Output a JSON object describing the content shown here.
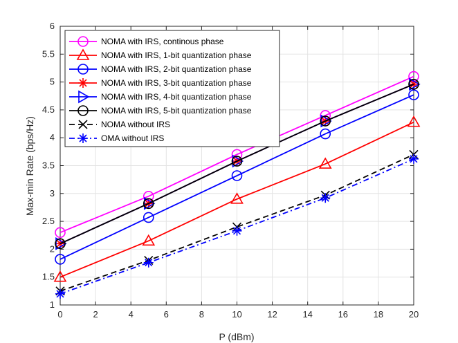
{
  "chart_data": {
    "type": "line",
    "xlabel": "P (dBm)",
    "ylabel": "Max-min Rate (bps/Hz)",
    "xlim": [
      0,
      20
    ],
    "ylim": [
      1,
      6
    ],
    "xticks": [
      0,
      2,
      4,
      6,
      8,
      10,
      12,
      14,
      16,
      18,
      20
    ],
    "yticks": [
      1,
      1.5,
      2,
      2.5,
      3,
      3.5,
      4,
      4.5,
      5,
      5.5,
      6
    ],
    "grid": true,
    "legend_position": "top-left",
    "x": [
      0,
      5,
      10,
      15,
      20
    ],
    "series": [
      {
        "name": "NOMA with IRS, continous phase",
        "values": [
          2.3,
          2.95,
          3.7,
          4.4,
          5.1
        ],
        "color": "#ff00ff",
        "marker": "circle",
        "dash": "solid"
      },
      {
        "name": "NOMA with IRS, 1-bit quantization phase",
        "values": [
          1.5,
          2.15,
          2.9,
          3.53,
          4.28
        ],
        "color": "#ff0000",
        "marker": "triangle",
        "dash": "solid"
      },
      {
        "name": "NOMA with IRS, 2-bit quantization phase",
        "values": [
          1.82,
          2.57,
          3.32,
          4.07,
          4.77
        ],
        "color": "#0000ff",
        "marker": "circle",
        "dash": "solid"
      },
      {
        "name": "NOMA with IRS, 3-bit quantization phase",
        "values": [
          2.1,
          2.82,
          3.58,
          4.3,
          4.96
        ],
        "color": "#ff0000",
        "marker": "asterisk",
        "dash": "solid"
      },
      {
        "name": "NOMA with IRS, 4-bit quantization phase",
        "values": [
          2.1,
          2.82,
          3.58,
          4.3,
          4.96
        ],
        "color": "#0000ff",
        "marker": "triangle-right",
        "dash": "solid"
      },
      {
        "name": "NOMA with IRS, 5-bit quantization phase",
        "values": [
          2.1,
          2.82,
          3.58,
          4.3,
          4.96
        ],
        "color": "#000000",
        "marker": "circle",
        "dash": "solid"
      },
      {
        "name": "NOMA without IRS",
        "values": [
          1.25,
          1.8,
          2.4,
          2.97,
          3.7
        ],
        "color": "#000000",
        "marker": "x",
        "dash": "dash"
      },
      {
        "name": "OMA without IRS",
        "values": [
          1.2,
          1.76,
          2.33,
          2.92,
          3.62
        ],
        "color": "#0000ff",
        "marker": "asterisk",
        "dash": "dashdot"
      }
    ]
  }
}
